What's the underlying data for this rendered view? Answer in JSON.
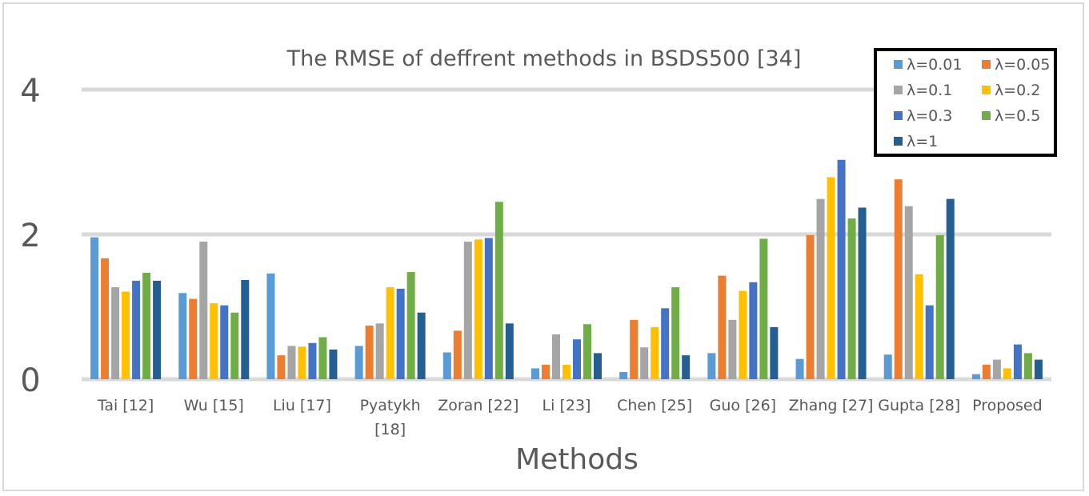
{
  "chart_data": {
    "type": "bar",
    "title": "The RMSE of deffrent methods in BSDS500 [34]",
    "xlabel": "Methods",
    "ylabel": "",
    "ylim": [
      0,
      4
    ],
    "yticks": [
      "0",
      "2",
      "4"
    ],
    "grid": true,
    "legend_position": "top-right",
    "categories": [
      [
        "Tai [12]"
      ],
      [
        "Wu [15]"
      ],
      [
        "Liu [17]"
      ],
      [
        "Pyatykh",
        "[18]"
      ],
      [
        "Zoran [22]"
      ],
      [
        "Li [23]"
      ],
      [
        "Chen [25]"
      ],
      [
        "Guo [26]"
      ],
      [
        "Zhang [27]"
      ],
      [
        "Gupta [28]"
      ],
      [
        "Proposed"
      ]
    ],
    "series": [
      {
        "name": "λ=0.01",
        "color": "#5b9bd5",
        "values": [
          1.96,
          1.19,
          1.46,
          0.46,
          0.37,
          0.15,
          0.1,
          0.36,
          0.28,
          0.34,
          0.07
        ]
      },
      {
        "name": "λ=0.05",
        "color": "#ed7d31",
        "values": [
          1.67,
          1.11,
          0.33,
          0.74,
          0.67,
          0.2,
          0.82,
          1.43,
          1.99,
          2.76,
          0.2
        ]
      },
      {
        "name": "λ=0.1",
        "color": "#a5a5a5",
        "values": [
          1.27,
          1.9,
          0.46,
          0.77,
          1.9,
          0.62,
          0.44,
          0.82,
          2.49,
          2.39,
          0.27
        ]
      },
      {
        "name": "λ=0.2",
        "color": "#ffc000",
        "values": [
          1.21,
          1.05,
          0.45,
          1.27,
          1.93,
          0.2,
          0.72,
          1.22,
          2.79,
          1.45,
          0.15
        ]
      },
      {
        "name": "λ=0.3",
        "color": "#4472c4",
        "values": [
          1.36,
          1.02,
          0.5,
          1.25,
          1.95,
          0.55,
          0.98,
          1.34,
          3.03,
          1.02,
          0.48
        ]
      },
      {
        "name": "λ=0.5",
        "color": "#70ad47",
        "values": [
          1.47,
          0.92,
          0.58,
          1.48,
          2.45,
          0.76,
          1.27,
          1.94,
          2.22,
          1.99,
          0.36
        ]
      },
      {
        "name": "λ=1",
        "color": "#255e91",
        "values": [
          1.36,
          1.37,
          0.41,
          0.92,
          0.77,
          0.36,
          0.33,
          0.72,
          2.37,
          2.49,
          0.27
        ]
      }
    ]
  }
}
